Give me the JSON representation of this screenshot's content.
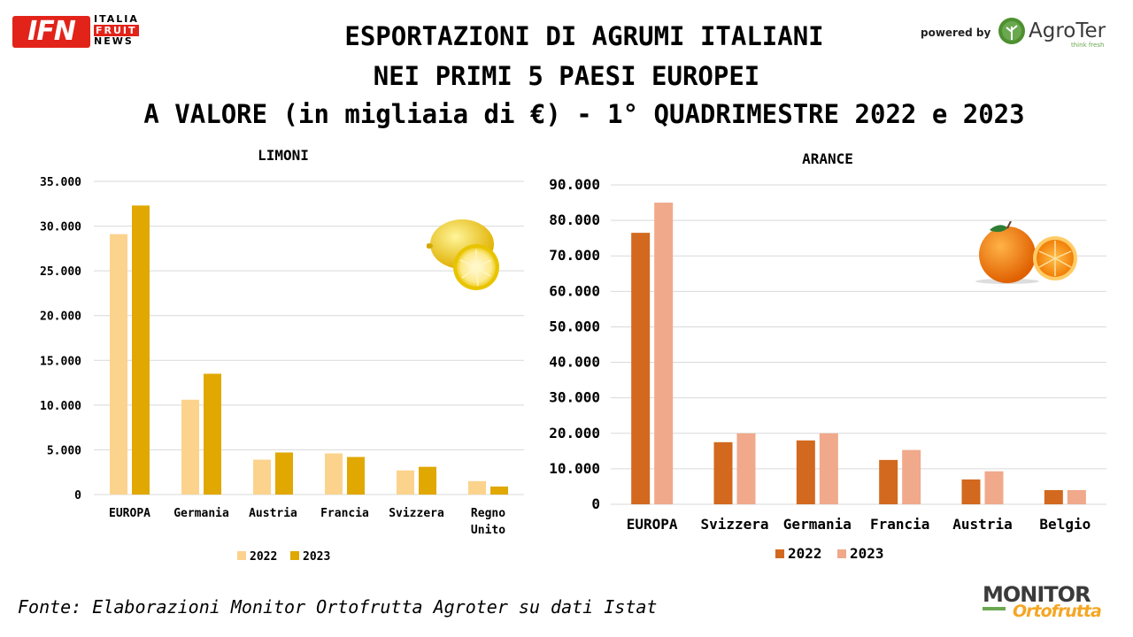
{
  "header": {
    "title_line1": "ESPORTAZIONI DI AGRUMI ITALIANI",
    "title_line2": "NEI PRIMI 5 PAESI EUROPEI",
    "title_line3": "A VALORE (in migliaia di €) - 1° QUADRIMESTRE 2022 e 2023",
    "ifn_logo": "IFN",
    "ifn_stack": [
      "ITALIA",
      "FRUIT",
      "NEWS"
    ],
    "powered_by": "powered by",
    "agroter_name": "AgroTer",
    "agroter_tag": "think fresh"
  },
  "footer": {
    "source": "Fonte: Elaborazioni Monitor Ortofrutta Agroter su dati Istat",
    "monitor_line1": "MONITOR",
    "monitor_line2": "Ortofrutta"
  },
  "chart_data": [
    {
      "type": "bar",
      "title": "LIMONI",
      "categories": [
        "EUROPA",
        "Germania",
        "Austria",
        "Francia",
        "Svizzera",
        "Regno Unito"
      ],
      "series": [
        {
          "name": "2022",
          "values": [
            29100,
            10600,
            3900,
            4600,
            2700,
            1500
          ],
          "color": "#fbd38d"
        },
        {
          "name": "2023",
          "values": [
            32300,
            13500,
            4700,
            4200,
            3100,
            900
          ],
          "color": "#e0a800"
        }
      ],
      "ylim": [
        0,
        35000
      ],
      "yticks": [
        0,
        5000,
        10000,
        15000,
        20000,
        25000,
        30000,
        35000
      ],
      "ytick_labels": [
        "0",
        "5.000",
        "10.000",
        "15.000",
        "20.000",
        "25.000",
        "30.000",
        "35.000"
      ],
      "grid": true,
      "legend": "bottom",
      "icon": "lemon-icon"
    },
    {
      "type": "bar",
      "title": "ARANCE",
      "categories": [
        "EUROPA",
        "Svizzera",
        "Germania",
        "Francia",
        "Austria",
        "Belgio"
      ],
      "series": [
        {
          "name": "2022",
          "values": [
            76500,
            17500,
            18000,
            12500,
            7000,
            4000
          ],
          "color": "#d2691e"
        },
        {
          "name": "2023",
          "values": [
            85000,
            20000,
            20000,
            15300,
            9300,
            4000
          ],
          "color": "#f0a98a"
        }
      ],
      "ylim": [
        0,
        90000
      ],
      "yticks": [
        0,
        10000,
        20000,
        30000,
        40000,
        50000,
        60000,
        70000,
        80000,
        90000
      ],
      "ytick_labels": [
        "0",
        "10.000",
        "20.000",
        "30.000",
        "40.000",
        "50.000",
        "60.000",
        "70.000",
        "80.000",
        "90.000"
      ],
      "grid": true,
      "legend": "bottom",
      "icon": "orange-icon"
    }
  ]
}
